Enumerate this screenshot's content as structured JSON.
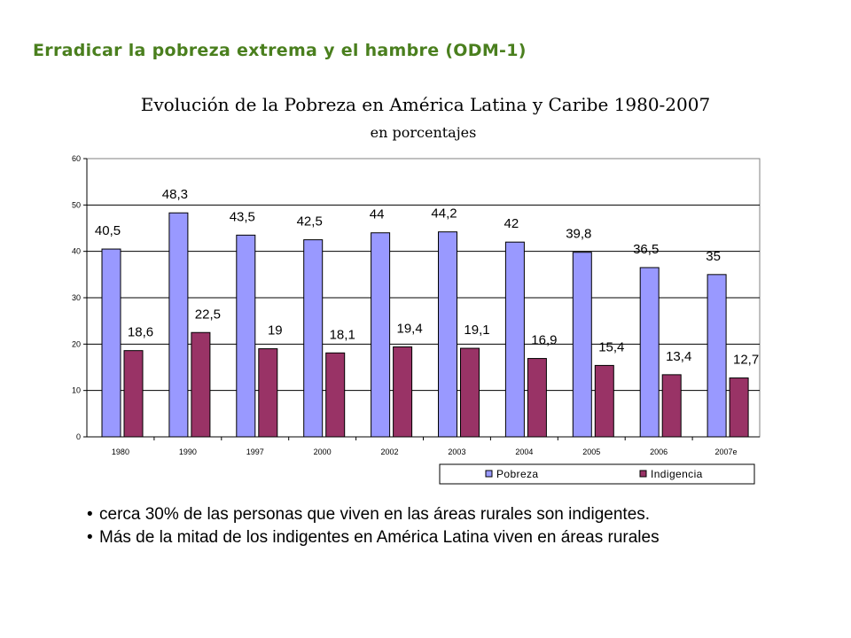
{
  "heading": "Erradicar la pobreza extrema y el hambre (ODM-1)",
  "chart_data": {
    "type": "bar",
    "title": "Evolución de la Pobreza en América Latina y Caribe 1980-2007",
    "subtitle": "en porcentajes",
    "categories": [
      "1980",
      "1990",
      "1997",
      "2000",
      "2002",
      "2003",
      "2004",
      "2005",
      "2006",
      "2007e"
    ],
    "ylim": [
      0,
      60
    ],
    "yticks": [
      "0",
      "10",
      "20",
      "30",
      "40",
      "50",
      "60"
    ],
    "grid": true,
    "legend_placement": "bottom-right",
    "series": [
      {
        "name": "Pobreza",
        "color": "#9999ff",
        "values": [
          40.5,
          48.3,
          43.5,
          42.5,
          44,
          44.2,
          42,
          39.8,
          36.5,
          35
        ],
        "labels": [
          "40,5",
          "48,3",
          "43,5",
          "42,5",
          "44",
          "44,2",
          "42",
          "39,8",
          "36,5",
          "35"
        ]
      },
      {
        "name": "Indigencia",
        "color": "#993366",
        "values": [
          18.6,
          22.5,
          19,
          18.1,
          19.4,
          19.1,
          16.9,
          15.4,
          13.4,
          12.7
        ],
        "labels": [
          "18,6",
          "22,5",
          "19",
          "18,1",
          "19,4",
          "19,1",
          "16,9",
          "15,4",
          "13,4",
          "12,7"
        ]
      }
    ]
  },
  "bullets": [
    "cerca 30% de las personas que viven en las áreas rurales son indigentes.",
    "Más de la mitad de los indigentes en América Latina viven en áreas rurales"
  ],
  "bullet_symbol": "•"
}
